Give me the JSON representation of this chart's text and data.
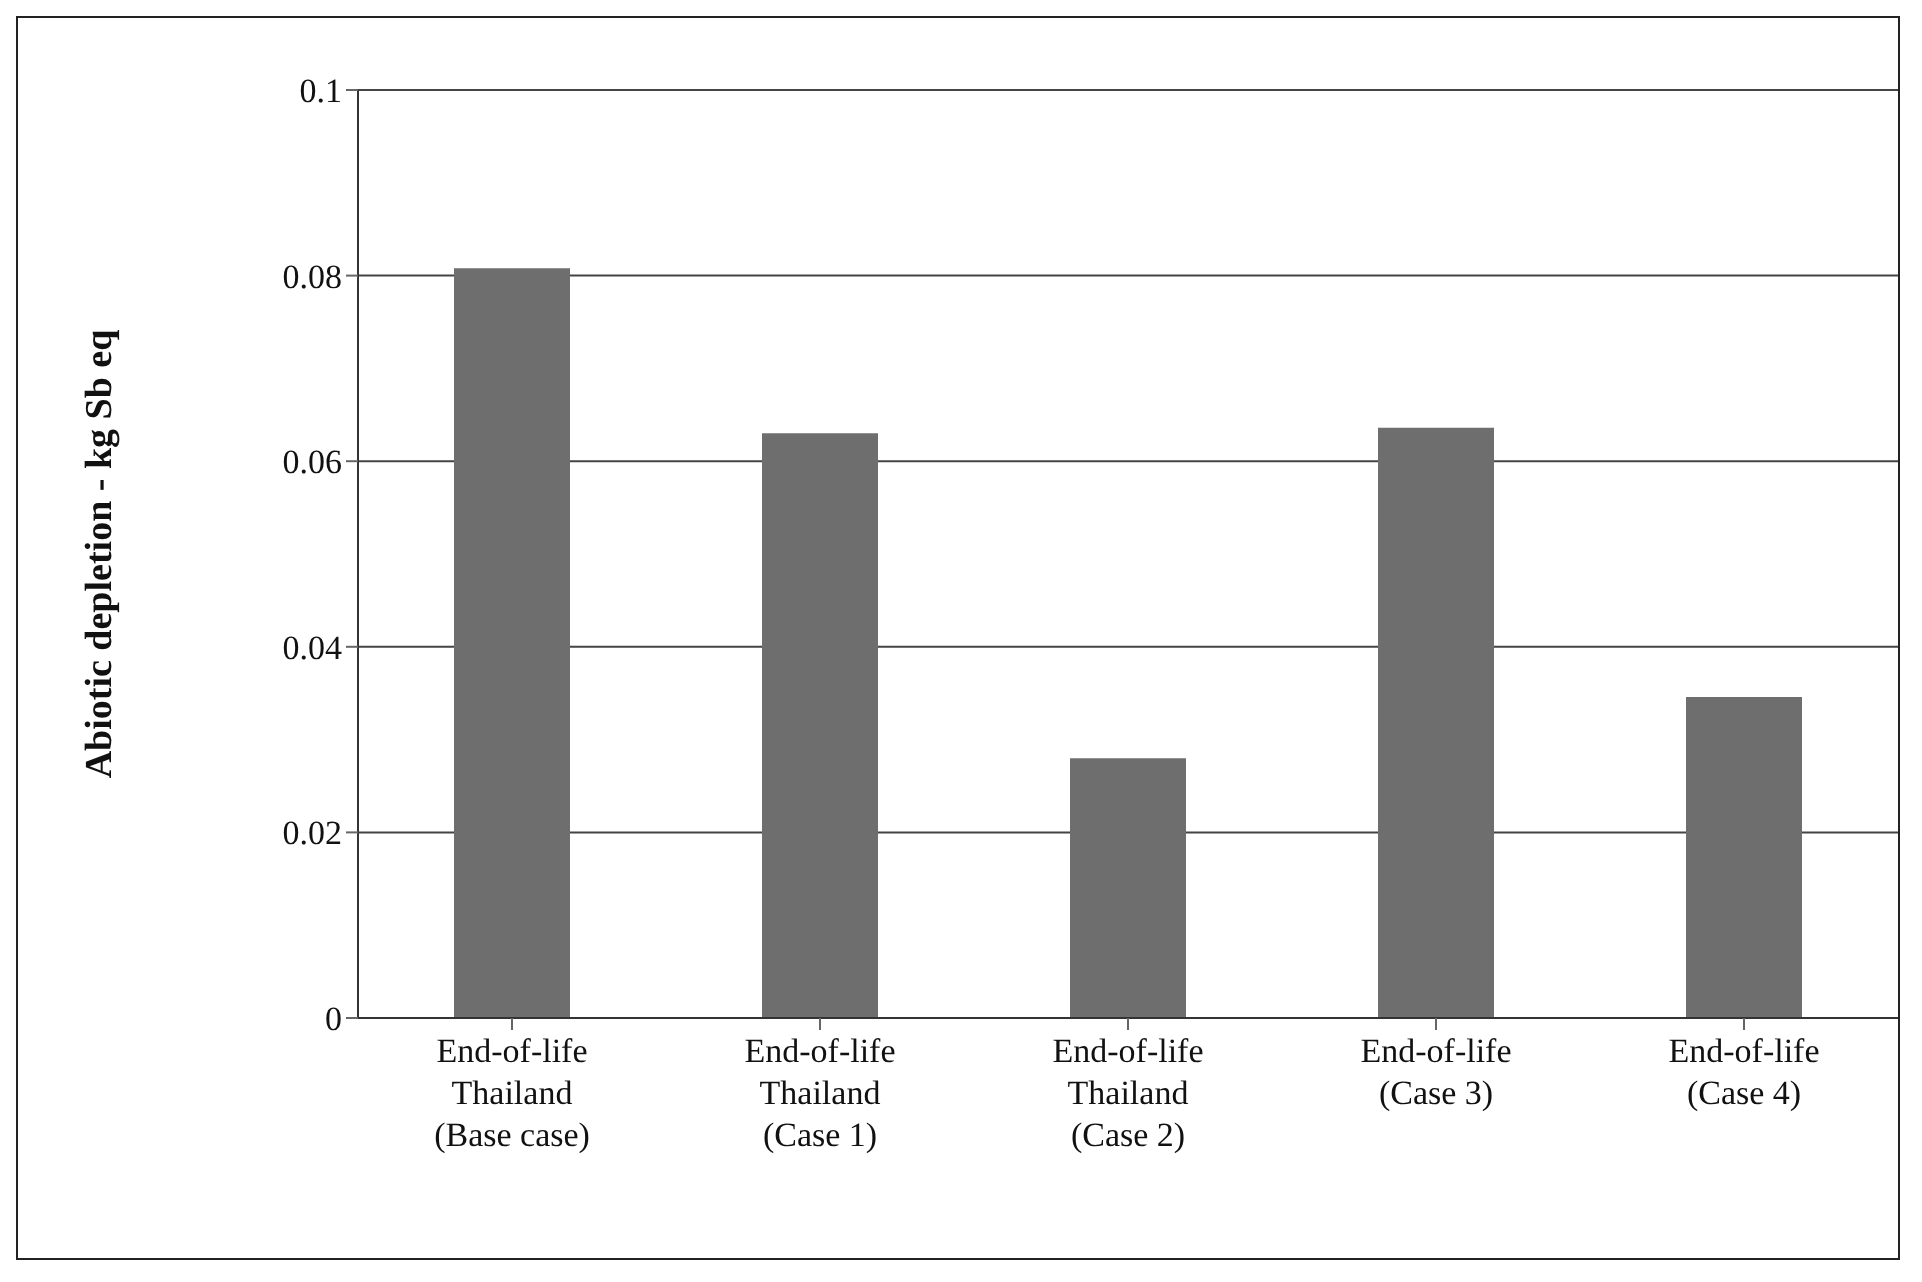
{
  "chart_data": {
    "type": "bar",
    "ylabel": "Abiotic depletion - kg Sb eq",
    "categories": [
      "End-of-life\nThailand\n(Base case)",
      "End-of-life\nThailand\n(Case 1)",
      "End-of-life\nThailand\n(Case 2)",
      "End-of-life\n(Case 3)",
      "End-of-life\n(Case 4)"
    ],
    "values": [
      0.0808,
      0.063,
      0.028,
      0.0636,
      0.0346
    ],
    "color": "#6e6e6e",
    "ylim": [
      0,
      0.1
    ],
    "yticks": [
      0,
      0.02,
      0.04,
      0.06,
      0.08,
      0.1
    ],
    "grid": "y",
    "legend": false
  }
}
